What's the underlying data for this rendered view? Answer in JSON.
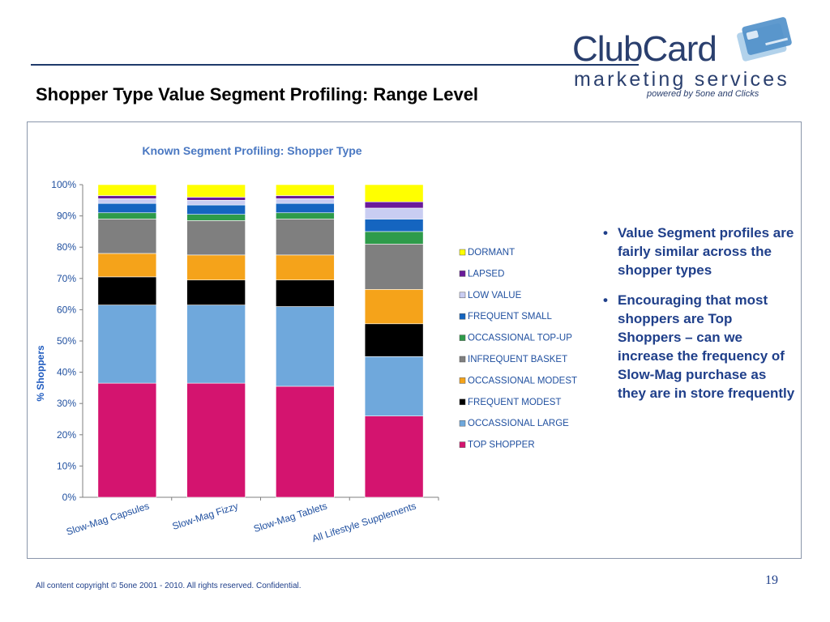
{
  "header": {
    "title": "Shopper Type Value Segment Profiling: Range Level",
    "logo": {
      "brand": "ClubCard",
      "sub": "marketing services",
      "powered": "powered by 5one and Clicks",
      "icon": "card-icon"
    }
  },
  "chart_data": {
    "type": "bar",
    "stacked": true,
    "title": "Known Segment Profiling: Shopper Type",
    "xlabel": "",
    "ylabel": "% Shoppers",
    "ylim": [
      0,
      100
    ],
    "yticks": [
      "0%",
      "10%",
      "20%",
      "30%",
      "40%",
      "50%",
      "60%",
      "70%",
      "80%",
      "90%",
      "100%"
    ],
    "grid": false,
    "legend": "right",
    "categories": [
      "Slow-Mag Capsules",
      "Slow-Mag Fizzy",
      "Slow-Mag Tablets",
      "All Lifestyle Supplements"
    ],
    "series": [
      {
        "name": "TOP SHOPPER",
        "color": "#d4146f",
        "values": [
          36.5,
          36.5,
          35.5,
          26
        ]
      },
      {
        "name": "OCCASSIONAL LARGE",
        "color": "#6fa8dc",
        "values": [
          25,
          25,
          25.5,
          19
        ]
      },
      {
        "name": "FREQUENT MODEST",
        "color": "#000000",
        "values": [
          9,
          8,
          8.5,
          10.5
        ]
      },
      {
        "name": "OCCASSIONAL MODEST",
        "color": "#f5a31a",
        "values": [
          7.5,
          8,
          8,
          11
        ]
      },
      {
        "name": "INFREQUENT BASKET",
        "color": "#7f7f7f",
        "values": [
          11,
          11,
          11.5,
          14.5
        ]
      },
      {
        "name": "OCCASSIONAL TOP-UP",
        "color": "#2e9b4a",
        "values": [
          2,
          2,
          2,
          4
        ]
      },
      {
        "name": "FREQUENT SMALL",
        "color": "#1565c0",
        "values": [
          3,
          3,
          3,
          4
        ]
      },
      {
        "name": "LOW VALUE",
        "color": "#c9cdf2",
        "values": [
          1.5,
          1.5,
          1.5,
          3.5
        ]
      },
      {
        "name": "LAPSED",
        "color": "#6a1b9a",
        "values": [
          1,
          1,
          1,
          2
        ]
      },
      {
        "name": "DORMANT",
        "color": "#ffff00",
        "values": [
          3.5,
          4,
          3.5,
          5.5
        ]
      }
    ]
  },
  "bullets": [
    "Value Segment profiles are fairly similar across the shopper types",
    "Encouraging that most shoppers are Top Shoppers – can we increase the frequency of Slow-Mag purchase as they are in store frequently"
  ],
  "bullet_marker": "•",
  "footer": {
    "copyright": "All content copyright © 5one 2001 - 2010. All rights reserved. Confidential.",
    "page": "19"
  }
}
